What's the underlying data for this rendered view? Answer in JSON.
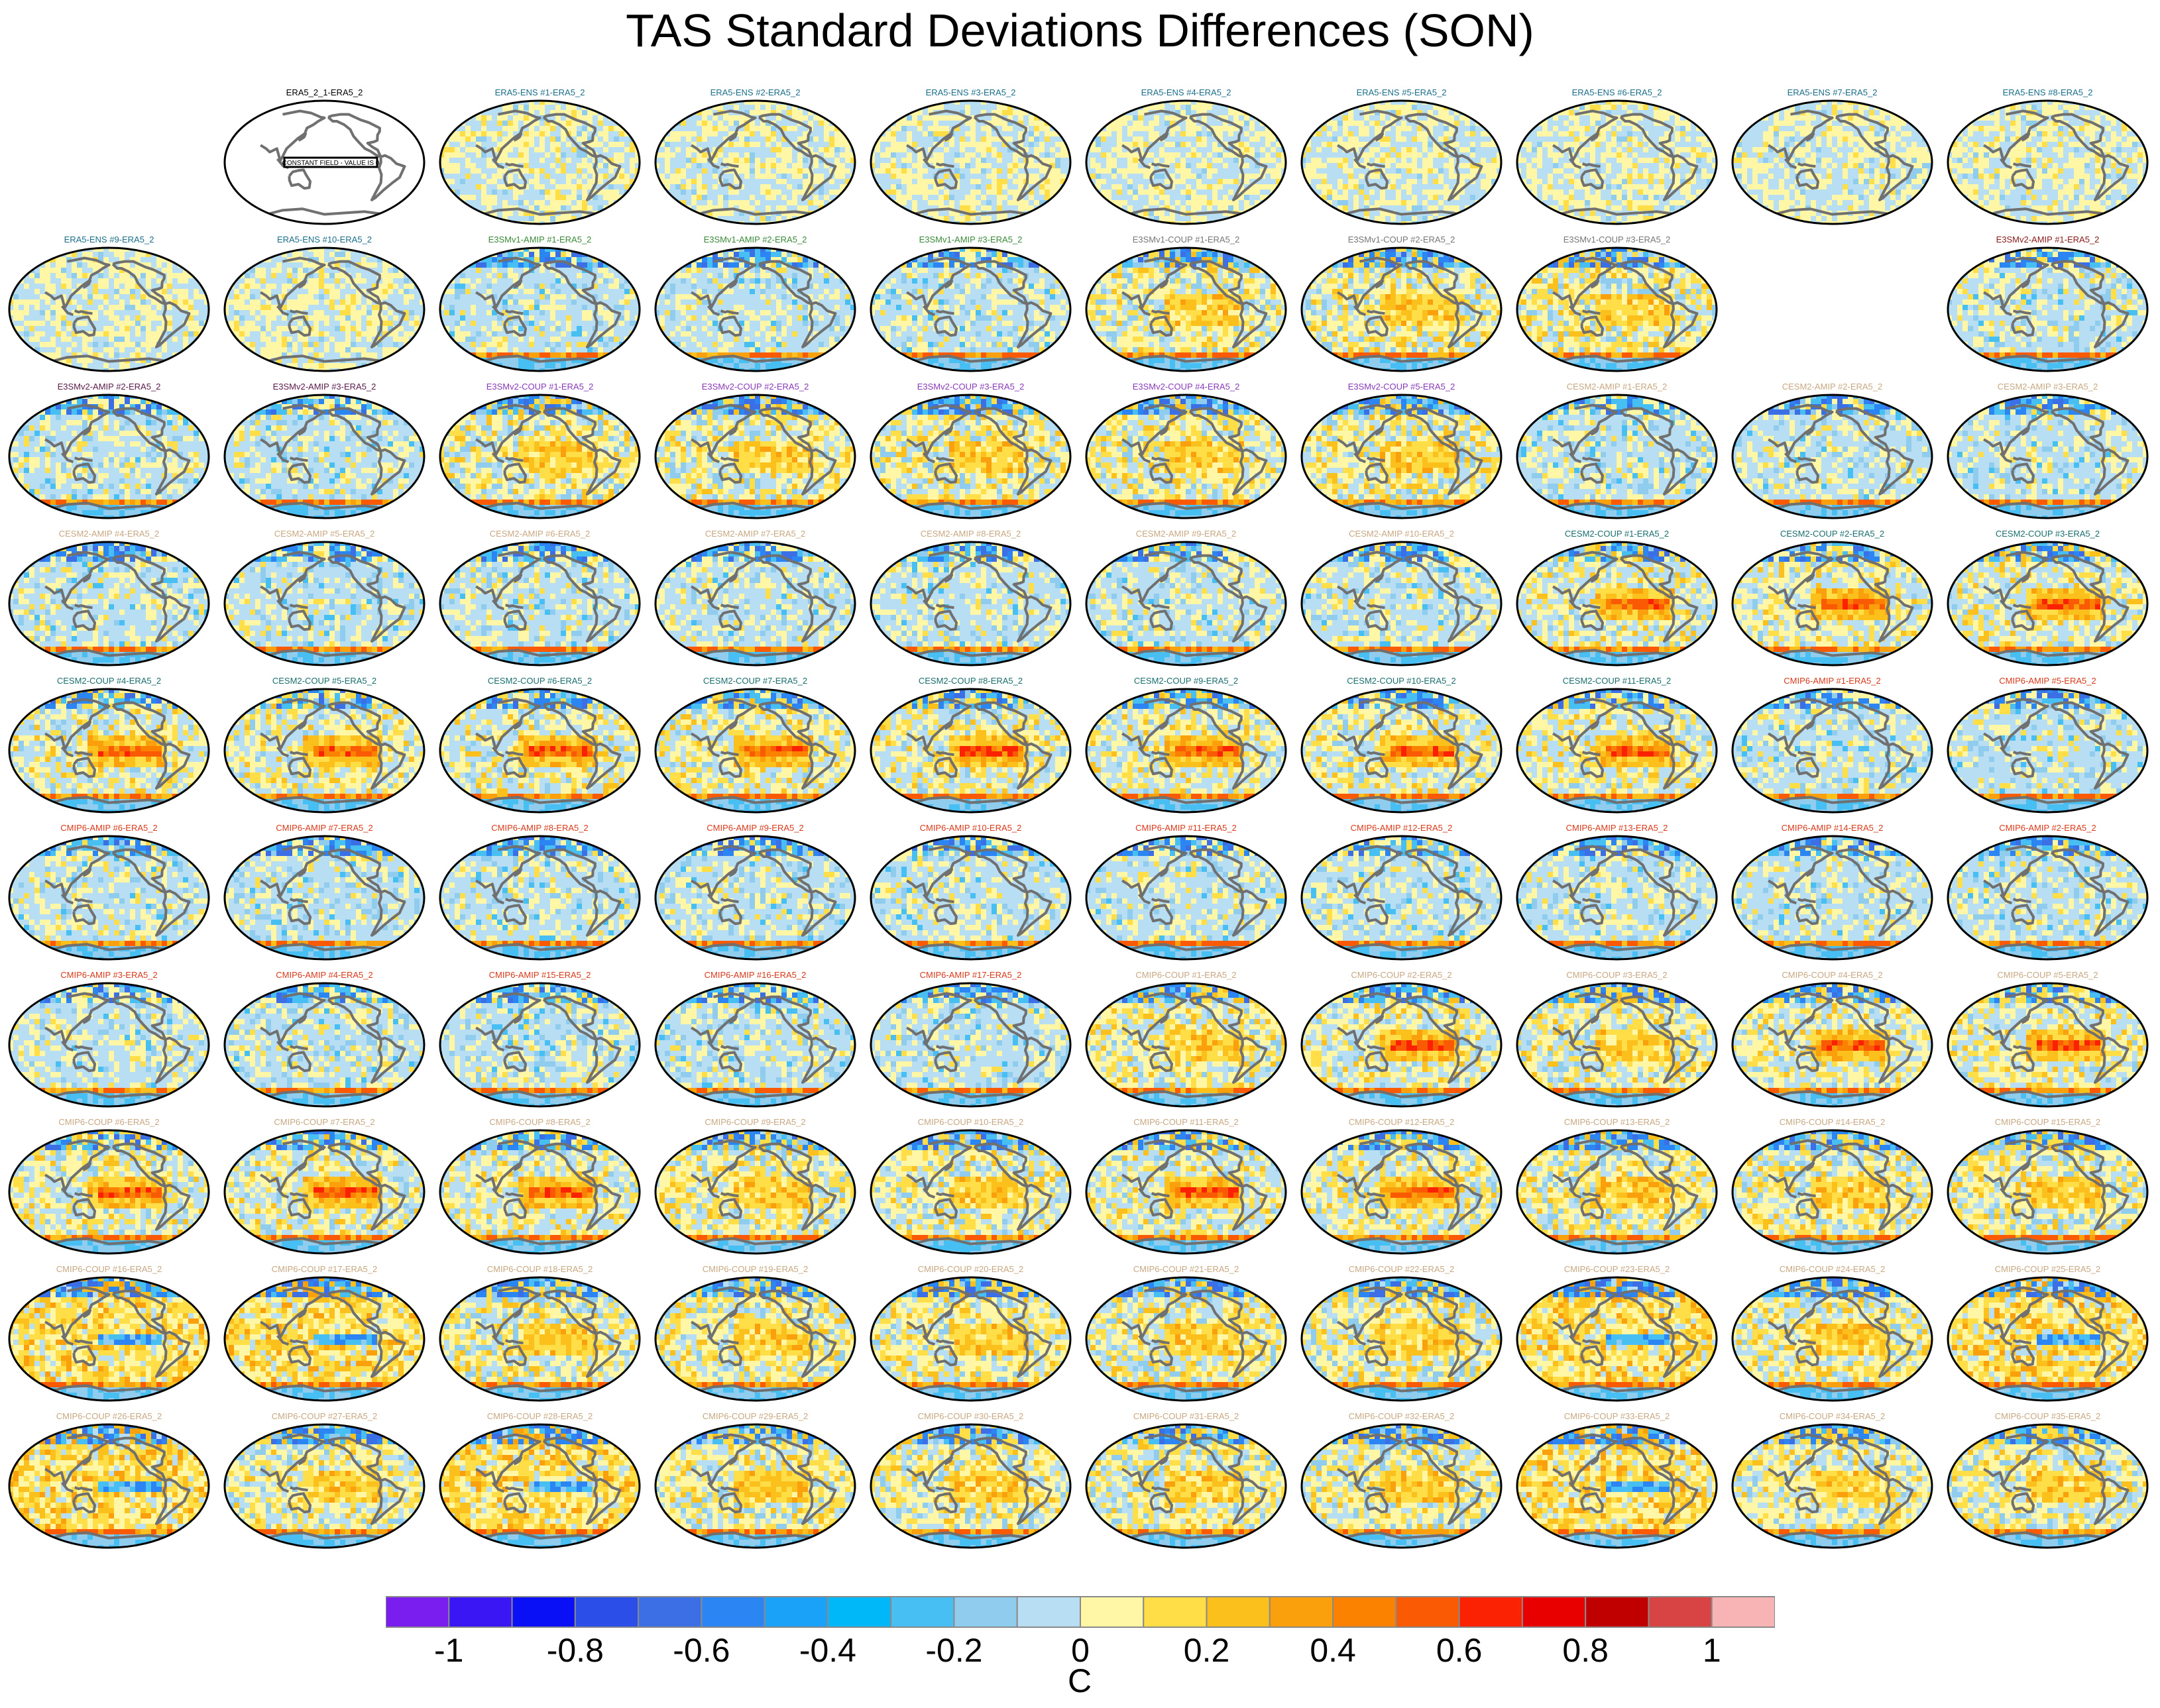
{
  "title": "TAS Standard Deviations Differences (SON)",
  "legend": {
    "units": "C",
    "tick_labels": [
      "-1",
      "-0.8",
      "-0.6",
      "-0.4",
      "-0.2",
      "0",
      "0.2",
      "0.4",
      "0.6",
      "0.8",
      "1"
    ],
    "colors": [
      "#7a1ef0",
      "#3a16f4",
      "#0a10f5",
      "#2c4ee8",
      "#3c6fe6",
      "#2b86f4",
      "#1aa2f8",
      "#00b8f8",
      "#48bff2",
      "#90ccee",
      "#b8def4",
      "#fff6a6",
      "#ffde48",
      "#fcc01c",
      "#f9a00c",
      "#fb8200",
      "#fb5a04",
      "#fb2204",
      "#e80000",
      "#c00000",
      "#d84444",
      "#f8b4b4"
    ]
  },
  "reference_panel": {
    "title": "ERA5_2_1-ERA5_2",
    "note": "CONSTANT FIELD - VALUE IS 0"
  },
  "panels": [
    {
      "title": "ERA5-ENS  #1-ERA5_2",
      "color": "#1a6e8a",
      "pattern": "era"
    },
    {
      "title": "ERA5-ENS  #2-ERA5_2",
      "color": "#1a6e8a",
      "pattern": "era"
    },
    {
      "title": "ERA5-ENS  #3-ERA5_2",
      "color": "#1a6e8a",
      "pattern": "era"
    },
    {
      "title": "ERA5-ENS  #4-ERA5_2",
      "color": "#1a6e8a",
      "pattern": "era"
    },
    {
      "title": "ERA5-ENS  #5-ERA5_2",
      "color": "#1a6e8a",
      "pattern": "era"
    },
    {
      "title": "ERA5-ENS  #6-ERA5_2",
      "color": "#1a6e8a",
      "pattern": "era"
    },
    {
      "title": "ERA5-ENS  #7-ERA5_2",
      "color": "#1a6e8a",
      "pattern": "era"
    },
    {
      "title": "ERA5-ENS  #8-ERA5_2",
      "color": "#1a6e8a",
      "pattern": "era"
    },
    {
      "title": "ERA5-ENS  #9-ERA5_2",
      "color": "#1a6e8a",
      "pattern": "era"
    },
    {
      "title": "ERA5-ENS  #10-ERA5_2",
      "color": "#1a6e8a",
      "pattern": "era"
    },
    {
      "title": "E3SMv1-AMIP #1-ERA5_2",
      "color": "#3a8a3a",
      "pattern": "amip"
    },
    {
      "title": "E3SMv1-AMIP #2-ERA5_2",
      "color": "#3a8a3a",
      "pattern": "amip"
    },
    {
      "title": "E3SMv1-AMIP #3-ERA5_2",
      "color": "#3a8a3a",
      "pattern": "amip"
    },
    {
      "title": "E3SMv1-COUP #1-ERA5_2",
      "color": "#777777",
      "pattern": "coup"
    },
    {
      "title": "E3SMv1-COUP #2-ERA5_2",
      "color": "#777777",
      "pattern": "coup"
    },
    {
      "title": "E3SMv1-COUP #3-ERA5_2",
      "color": "#777777",
      "pattern": "coup"
    },
    {
      "title": "E3SMv2-AMIP #1-ERA5_2",
      "color": "#8a1a1a",
      "pattern": "amip"
    },
    {
      "title": "E3SMv2-AMIP #2-ERA5_2",
      "color": "#5a1a4a",
      "pattern": "amip"
    },
    {
      "title": "E3SMv2-AMIP #3-ERA5_2",
      "color": "#5a1a4a",
      "pattern": "amip"
    },
    {
      "title": "E3SMv2-COUP #1-ERA5_2",
      "color": "#8a3ab8",
      "pattern": "coup"
    },
    {
      "title": "E3SMv2-COUP #2-ERA5_2",
      "color": "#8a3ab8",
      "pattern": "coup"
    },
    {
      "title": "E3SMv2-COUP #3-ERA5_2",
      "color": "#8a3ab8",
      "pattern": "coup"
    },
    {
      "title": "E3SMv2-COUP #4-ERA5_2",
      "color": "#8a3ab8",
      "pattern": "coup"
    },
    {
      "title": "E3SMv2-COUP #5-ERA5_2",
      "color": "#8a3ab8",
      "pattern": "coup"
    },
    {
      "title": "CESM2-AMIP #1-ERA5_2",
      "color": "#c8a882",
      "pattern": "amip"
    },
    {
      "title": "CESM2-AMIP #2-ERA5_2",
      "color": "#c8a882",
      "pattern": "amip"
    },
    {
      "title": "CESM2-AMIP #3-ERA5_2",
      "color": "#c8a882",
      "pattern": "amip"
    },
    {
      "title": "CESM2-AMIP #4-ERA5_2",
      "color": "#c8a882",
      "pattern": "amip"
    },
    {
      "title": "CESM2-AMIP #5-ERA5_2",
      "color": "#c8a882",
      "pattern": "amip"
    },
    {
      "title": "CESM2-AMIP #6-ERA5_2",
      "color": "#c8a882",
      "pattern": "amip"
    },
    {
      "title": "CESM2-AMIP #7-ERA5_2",
      "color": "#c8a882",
      "pattern": "amip"
    },
    {
      "title": "CESM2-AMIP #8-ERA5_2",
      "color": "#c8a882",
      "pattern": "amip"
    },
    {
      "title": "CESM2-AMIP #9-ERA5_2",
      "color": "#c8a882",
      "pattern": "amip"
    },
    {
      "title": "CESM2-AMIP #10-ERA5_2",
      "color": "#c8a882",
      "pattern": "amip"
    },
    {
      "title": "CESM2-COUP #1-ERA5_2",
      "color": "#1a6e6e",
      "pattern": "enso"
    },
    {
      "title": "CESM2-COUP #2-ERA5_2",
      "color": "#1a6e6e",
      "pattern": "enso"
    },
    {
      "title": "CESM2-COUP #3-ERA5_2",
      "color": "#1a6e6e",
      "pattern": "enso"
    },
    {
      "title": "CESM2-COUP #4-ERA5_2",
      "color": "#1a6e6e",
      "pattern": "enso"
    },
    {
      "title": "CESM2-COUP #5-ERA5_2",
      "color": "#1a6e6e",
      "pattern": "enso"
    },
    {
      "title": "CESM2-COUP #6-ERA5_2",
      "color": "#1a6e6e",
      "pattern": "enso"
    },
    {
      "title": "CESM2-COUP #7-ERA5_2",
      "color": "#1a6e6e",
      "pattern": "enso"
    },
    {
      "title": "CESM2-COUP #8-ERA5_2",
      "color": "#1a6e6e",
      "pattern": "enso"
    },
    {
      "title": "CESM2-COUP #9-ERA5_2",
      "color": "#1a6e6e",
      "pattern": "enso"
    },
    {
      "title": "CESM2-COUP #10-ERA5_2",
      "color": "#1a6e6e",
      "pattern": "enso"
    },
    {
      "title": "CESM2-COUP #11-ERA5_2",
      "color": "#1a6e6e",
      "pattern": "enso"
    },
    {
      "title": "CMIP6-AMIP #1-ERA5_2",
      "color": "#d83a1a",
      "pattern": "amip"
    },
    {
      "title": "CMIP6-AMIP #5-ERA5_2",
      "color": "#d83a1a",
      "pattern": "amip"
    },
    {
      "title": "CMIP6-AMIP #6-ERA5_2",
      "color": "#d83a1a",
      "pattern": "amip"
    },
    {
      "title": "CMIP6-AMIP #7-ERA5_2",
      "color": "#d83a1a",
      "pattern": "amip"
    },
    {
      "title": "CMIP6-AMIP #8-ERA5_2",
      "color": "#d83a1a",
      "pattern": "amip"
    },
    {
      "title": "CMIP6-AMIP #9-ERA5_2",
      "color": "#d83a1a",
      "pattern": "amip"
    },
    {
      "title": "CMIP6-AMIP #10-ERA5_2",
      "color": "#d83a1a",
      "pattern": "amip"
    },
    {
      "title": "CMIP6-AMIP #11-ERA5_2",
      "color": "#d83a1a",
      "pattern": "amip"
    },
    {
      "title": "CMIP6-AMIP #12-ERA5_2",
      "color": "#d83a1a",
      "pattern": "amip"
    },
    {
      "title": "CMIP6-AMIP #13-ERA5_2",
      "color": "#d83a1a",
      "pattern": "amip"
    },
    {
      "title": "CMIP6-AMIP #14-ERA5_2",
      "color": "#d83a1a",
      "pattern": "amip"
    },
    {
      "title": "CMIP6-AMIP #2-ERA5_2",
      "color": "#d83a1a",
      "pattern": "amip"
    },
    {
      "title": "CMIP6-AMIP #3-ERA5_2",
      "color": "#d83a1a",
      "pattern": "amip"
    },
    {
      "title": "CMIP6-AMIP #4-ERA5_2",
      "color": "#d83a1a",
      "pattern": "amip"
    },
    {
      "title": "CMIP6-AMIP #15-ERA5_2",
      "color": "#d83a1a",
      "pattern": "amip"
    },
    {
      "title": "CMIP6-AMIP #16-ERA5_2",
      "color": "#d83a1a",
      "pattern": "amip"
    },
    {
      "title": "CMIP6-AMIP #17-ERA5_2",
      "color": "#d83a1a",
      "pattern": "amip"
    },
    {
      "title": "CMIP6-COUP #1-ERA5_2",
      "color": "#c8a882",
      "pattern": "coup"
    },
    {
      "title": "CMIP6-COUP #2-ERA5_2",
      "color": "#c8a882",
      "pattern": "enso"
    },
    {
      "title": "CMIP6-COUP #3-ERA5_2",
      "color": "#c8a882",
      "pattern": "coup"
    },
    {
      "title": "CMIP6-COUP #4-ERA5_2",
      "color": "#c8a882",
      "pattern": "enso"
    },
    {
      "title": "CMIP6-COUP #5-ERA5_2",
      "color": "#c8a882",
      "pattern": "enso"
    },
    {
      "title": "CMIP6-COUP #6-ERA5_2",
      "color": "#c8a882",
      "pattern": "enso"
    },
    {
      "title": "CMIP6-COUP #7-ERA5_2",
      "color": "#c8a882",
      "pattern": "enso"
    },
    {
      "title": "CMIP6-COUP #8-ERA5_2",
      "color": "#c8a882",
      "pattern": "enso"
    },
    {
      "title": "CMIP6-COUP #9-ERA5_2",
      "color": "#c8a882",
      "pattern": "coup"
    },
    {
      "title": "CMIP6-COUP #10-ERA5_2",
      "color": "#c8a882",
      "pattern": "coup"
    },
    {
      "title": "CMIP6-COUP #11-ERA5_2",
      "color": "#c8a882",
      "pattern": "enso"
    },
    {
      "title": "CMIP6-COUP #12-ERA5_2",
      "color": "#c8a882",
      "pattern": "enso"
    },
    {
      "title": "CMIP6-COUP #13-ERA5_2",
      "color": "#c8a882",
      "pattern": "coup"
    },
    {
      "title": "CMIP6-COUP #14-ERA5_2",
      "color": "#c8a882",
      "pattern": "coup"
    },
    {
      "title": "CMIP6-COUP #15-ERA5_2",
      "color": "#c8a882",
      "pattern": "coup"
    },
    {
      "title": "CMIP6-COUP #16-ERA5_2",
      "color": "#c8a882",
      "pattern": "lanina"
    },
    {
      "title": "CMIP6-COUP #17-ERA5_2",
      "color": "#c8a882",
      "pattern": "lanina"
    },
    {
      "title": "CMIP6-COUP #18-ERA5_2",
      "color": "#c8a882",
      "pattern": "coup"
    },
    {
      "title": "CMIP6-COUP #19-ERA5_2",
      "color": "#c8a882",
      "pattern": "coup"
    },
    {
      "title": "CMIP6-COUP #20-ERA5_2",
      "color": "#c8a882",
      "pattern": "coup"
    },
    {
      "title": "CMIP6-COUP #21-ERA5_2",
      "color": "#c8a882",
      "pattern": "coup"
    },
    {
      "title": "CMIP6-COUP #22-ERA5_2",
      "color": "#c8a882",
      "pattern": "coup"
    },
    {
      "title": "CMIP6-COUP #23-ERA5_2",
      "color": "#c8a882",
      "pattern": "lanina"
    },
    {
      "title": "CMIP6-COUP #24-ERA5_2",
      "color": "#c8a882",
      "pattern": "coup"
    },
    {
      "title": "CMIP6-COUP #25-ERA5_2",
      "color": "#c8a882",
      "pattern": "lanina"
    },
    {
      "title": "CMIP6-COUP #26-ERA5_2",
      "color": "#c8a882",
      "pattern": "lanina"
    },
    {
      "title": "CMIP6-COUP #27-ERA5_2",
      "color": "#c8a882",
      "pattern": "coup"
    },
    {
      "title": "CMIP6-COUP #28-ERA5_2",
      "color": "#c8a882",
      "pattern": "lanina"
    },
    {
      "title": "CMIP6-COUP #29-ERA5_2",
      "color": "#c8a882",
      "pattern": "coup"
    },
    {
      "title": "CMIP6-COUP #30-ERA5_2",
      "color": "#c8a882",
      "pattern": "coup"
    },
    {
      "title": "CMIP6-COUP #31-ERA5_2",
      "color": "#c8a882",
      "pattern": "coup"
    },
    {
      "title": "CMIP6-COUP #32-ERA5_2",
      "color": "#c8a882",
      "pattern": "coup"
    },
    {
      "title": "CMIP6-COUP #33-ERA5_2",
      "color": "#c8a882",
      "pattern": "lanina"
    },
    {
      "title": "CMIP6-COUP #34-ERA5_2",
      "color": "#c8a882",
      "pattern": "coup"
    },
    {
      "title": "CMIP6-COUP #35-ERA5_2",
      "color": "#c8a882",
      "pattern": "coup"
    }
  ]
}
